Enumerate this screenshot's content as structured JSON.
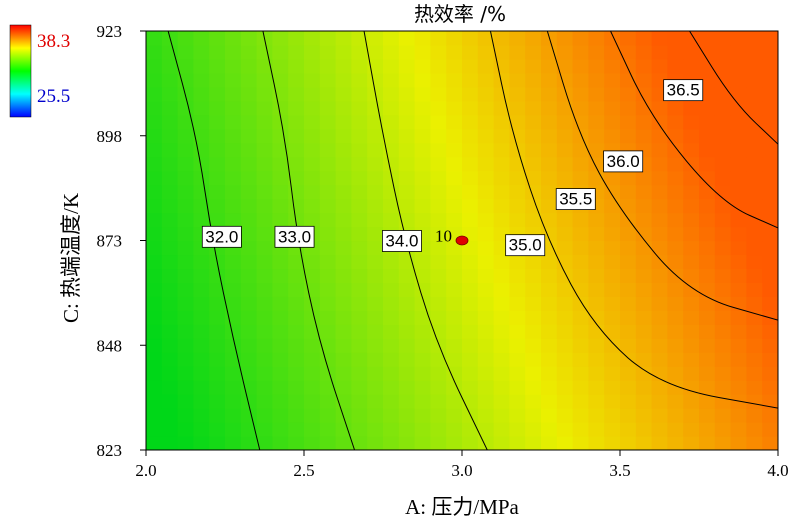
{
  "chart_data": {
    "type": "contour",
    "title": "热效率 /%",
    "xlabel": "A: 压力/MPa",
    "ylabel": "C: 热端温度/K",
    "xlim": [
      2.0,
      4.0
    ],
    "ylim": [
      823,
      923
    ],
    "x_ticks": [
      "2.0",
      "2.5",
      "3.0",
      "3.5",
      "4.0"
    ],
    "y_ticks": [
      "823",
      "848",
      "873",
      "898",
      "923"
    ],
    "colorbar": {
      "max_label": "38.3",
      "min_label": "25.5",
      "max_color": "#ff2a00",
      "min_color": "#0000cc",
      "gradient": [
        "#ff0000",
        "#ffff00",
        "#00ff00",
        "#00ffff",
        "#0000ff"
      ]
    },
    "levels": [
      {
        "label": "32.0",
        "value": 32.0,
        "points": [
          [
            2.07,
            923
          ],
          [
            2.16,
            898
          ],
          [
            2.21,
            873
          ],
          [
            2.28,
            848
          ],
          [
            2.36,
            823
          ]
        ],
        "label_at": [
          2.24,
          874
        ]
      },
      {
        "label": "33.0",
        "value": 33.0,
        "points": [
          [
            2.37,
            923
          ],
          [
            2.44,
            898
          ],
          [
            2.48,
            873
          ],
          [
            2.55,
            848
          ],
          [
            2.66,
            823
          ]
        ],
        "label_at": [
          2.47,
          874
        ]
      },
      {
        "label": "34.0",
        "value": 34.0,
        "points": [
          [
            2.69,
            923
          ],
          [
            2.75,
            898
          ],
          [
            2.82,
            873
          ],
          [
            2.92,
            848
          ],
          [
            3.08,
            823
          ]
        ],
        "label_at": [
          2.81,
          873
        ]
      },
      {
        "label": "35.0",
        "value": 35.0,
        "points": [
          [
            3.09,
            923
          ],
          [
            3.16,
            898
          ],
          [
            3.27,
            873
          ],
          [
            3.42,
            852
          ],
          [
            3.63,
            838
          ],
          [
            4.0,
            833
          ]
        ],
        "label_at": [
          3.2,
          872
        ]
      },
      {
        "label": "35.5",
        "value": 35.5,
        "points": [
          [
            3.27,
            923
          ],
          [
            3.37,
            898
          ],
          [
            3.5,
            880
          ],
          [
            3.72,
            860
          ],
          [
            4.0,
            854
          ]
        ],
        "label_at": [
          3.36,
          883
        ]
      },
      {
        "label": "36.0",
        "value": 36.0,
        "points": [
          [
            3.47,
            923
          ],
          [
            3.6,
            902
          ],
          [
            3.82,
            882
          ],
          [
            4.0,
            876
          ]
        ],
        "label_at": [
          3.51,
          892
        ]
      },
      {
        "label": "36.5",
        "value": 36.5,
        "points": [
          [
            3.72,
            923
          ],
          [
            3.86,
            906
          ],
          [
            4.0,
            896
          ]
        ],
        "label_at": [
          3.7,
          909
        ]
      }
    ],
    "points": [
      {
        "label": "10",
        "x": 3.0,
        "y": 873,
        "color": "#e00000"
      }
    ],
    "grid": false
  }
}
